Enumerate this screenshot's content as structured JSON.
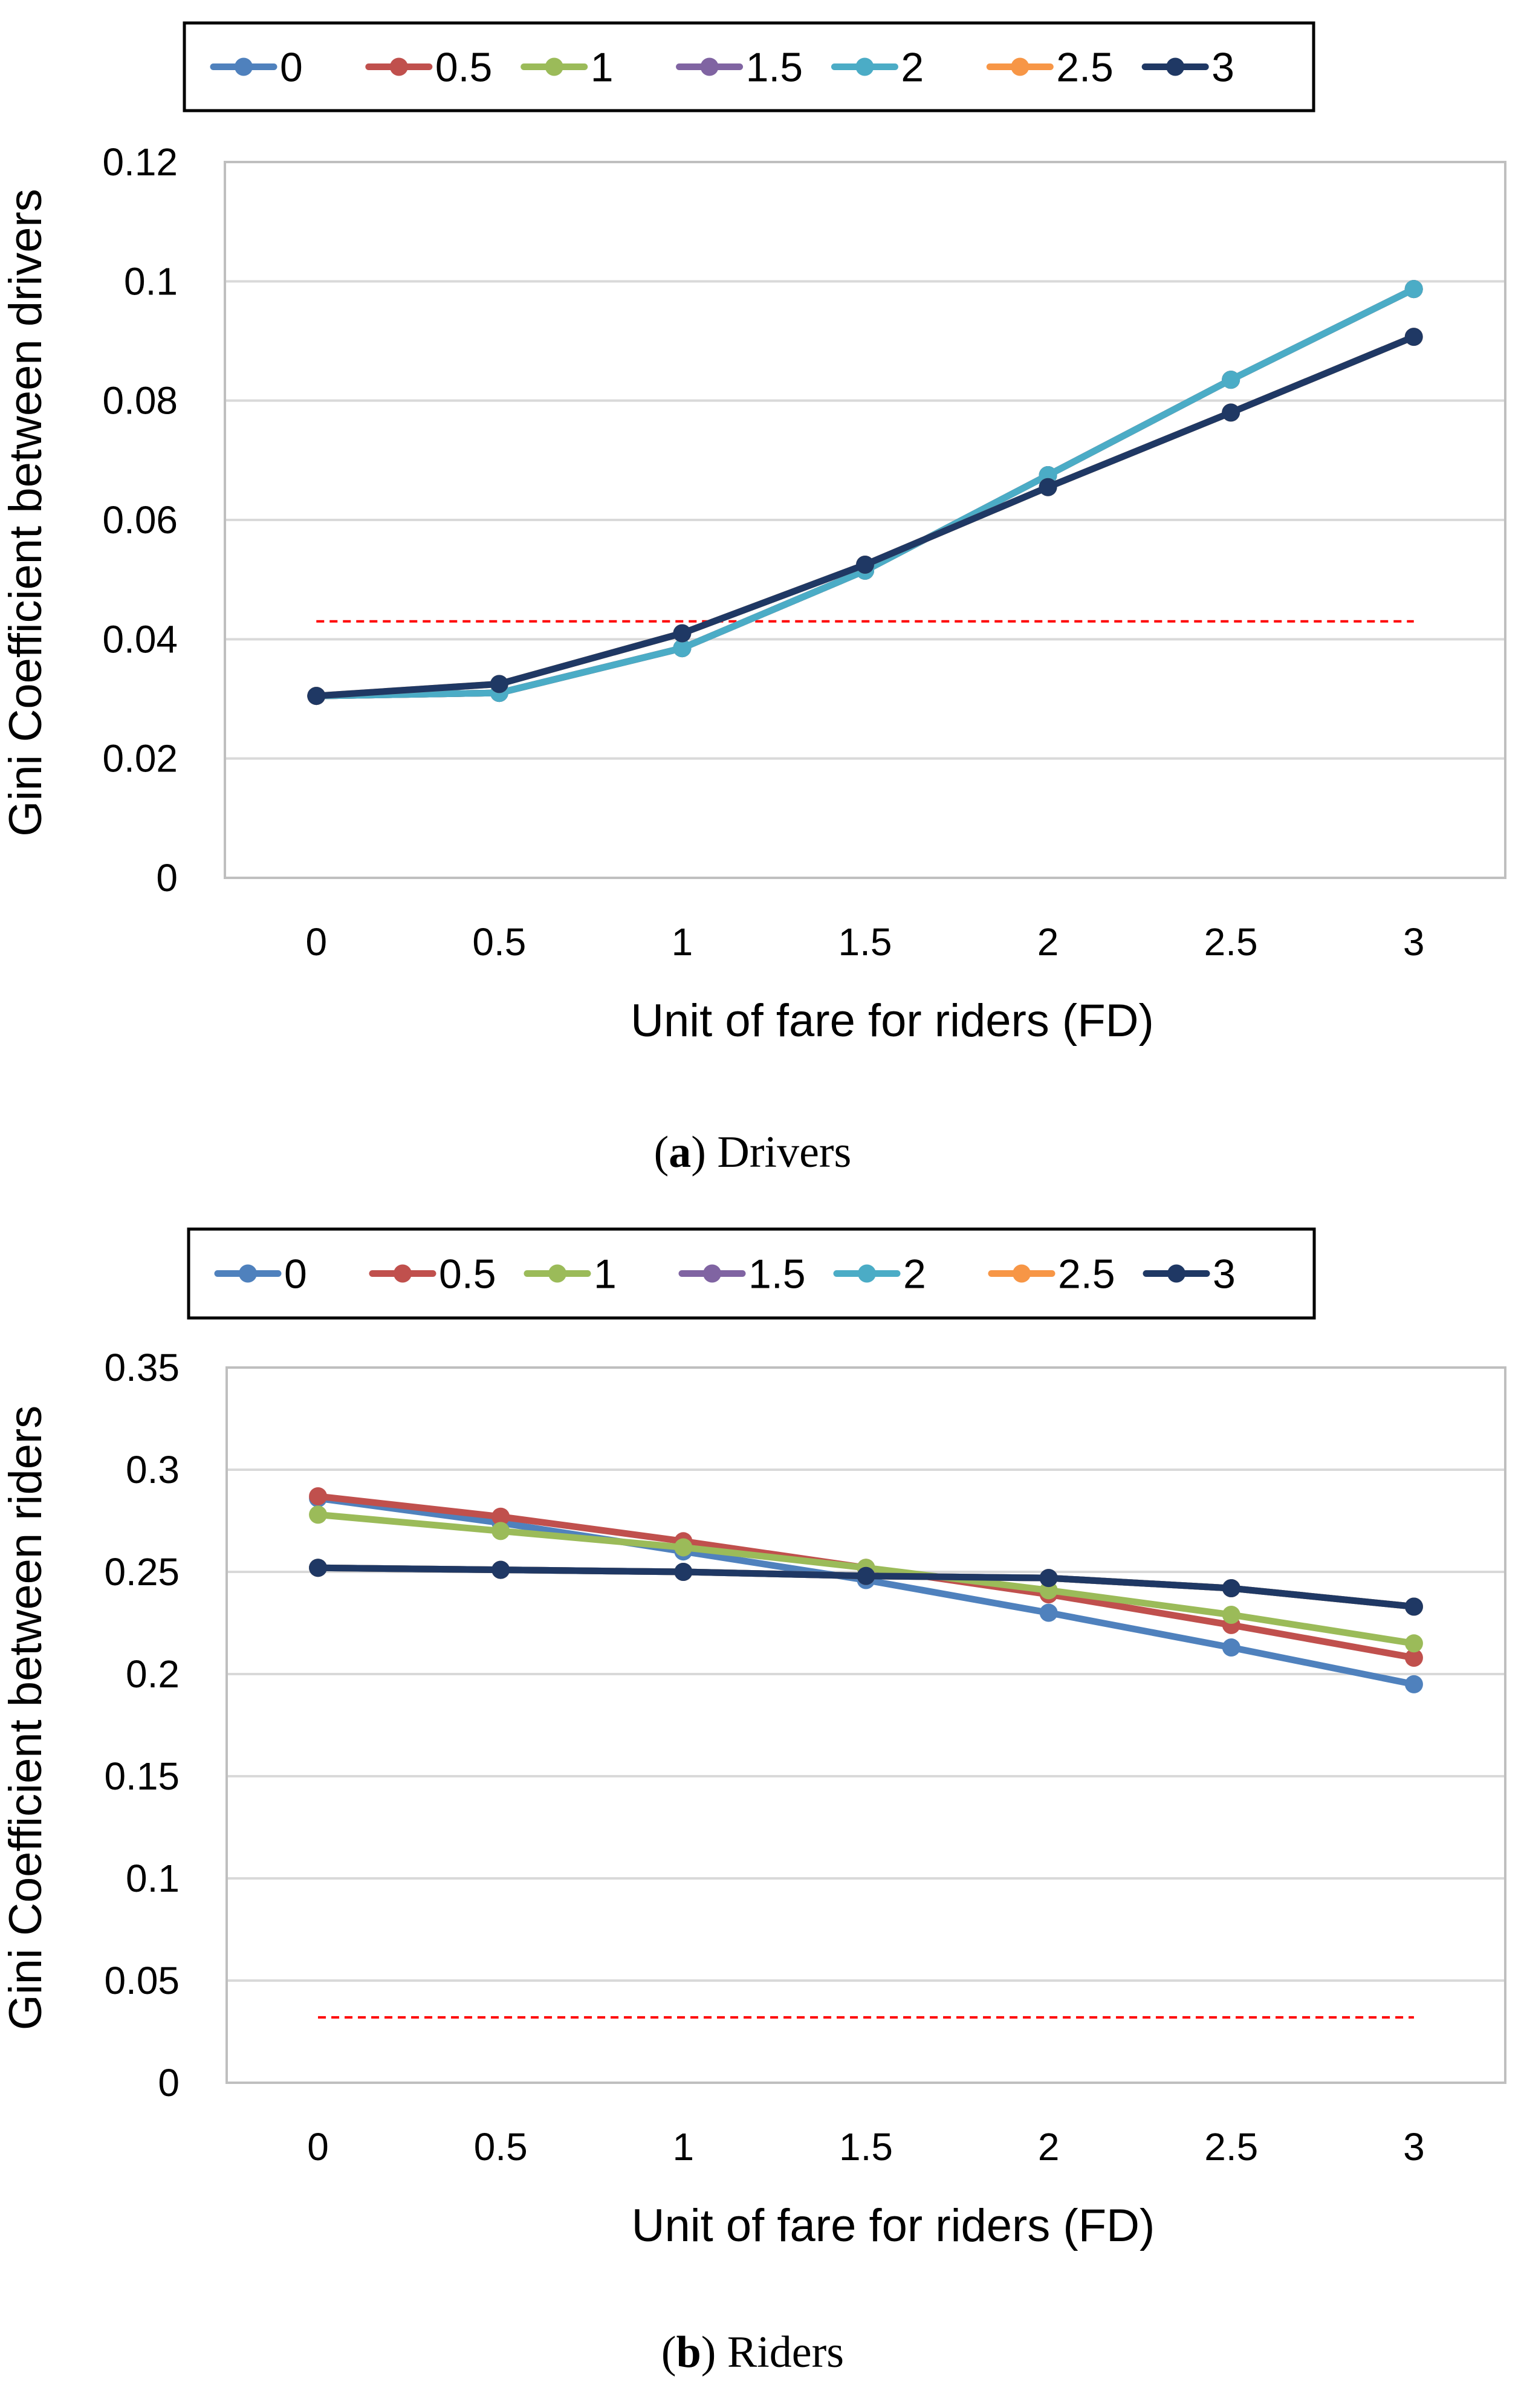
{
  "chart_data": [
    {
      "id": "drivers",
      "type": "line",
      "title": "",
      "caption_letter": "a",
      "caption_text": " Drivers",
      "xlabel": "Unit of fare for riders (FD)",
      "ylabel": "Gini Coefficient between drivers",
      "x": [
        0,
        0.5,
        1,
        1.5,
        2,
        2.5,
        3
      ],
      "x_tick_labels": [
        "0",
        "0.5",
        "1",
        "1.5",
        "2",
        "2.5",
        "3"
      ],
      "ylim": [
        0,
        0.12
      ],
      "y_ticks": [
        0,
        0.02,
        0.04,
        0.06,
        0.08,
        0.1,
        0.12
      ],
      "y_tick_labels": [
        "0",
        "0.02",
        "0.04",
        "0.06",
        "0.08",
        "0.1",
        "0.12"
      ],
      "grid": true,
      "legend_position": "top",
      "series": [
        {
          "name": "0",
          "color": "#4F81BD",
          "values": [
            0.0305,
            0.031,
            0.0385,
            0.0515,
            0.0675,
            0.0835,
            0.0987
          ]
        },
        {
          "name": "0.5",
          "color": "#C0504D",
          "values": [
            0.0305,
            0.031,
            0.0385,
            0.0515,
            0.0675,
            0.0835,
            0.0987
          ]
        },
        {
          "name": "1",
          "color": "#9BBB59",
          "values": [
            0.0305,
            0.031,
            0.0385,
            0.0515,
            0.0675,
            0.0835,
            0.0987
          ]
        },
        {
          "name": "1.5",
          "color": "#8064A2",
          "values": [
            0.0305,
            0.031,
            0.0385,
            0.0515,
            0.0675,
            0.0835,
            0.0987
          ]
        },
        {
          "name": "2",
          "color": "#4BACC6",
          "values": [
            0.0305,
            0.031,
            0.0385,
            0.0515,
            0.0675,
            0.0835,
            0.0987
          ]
        },
        {
          "name": "2.5",
          "color": "#F79646",
          "values": [
            0.0305,
            0.0325,
            0.041,
            0.0525,
            0.0655,
            0.078,
            0.0907
          ]
        },
        {
          "name": "3",
          "color": "#1F3864",
          "values": [
            0.0305,
            0.0325,
            0.041,
            0.0525,
            0.0655,
            0.078,
            0.0907
          ]
        }
      ],
      "reference_line": {
        "value": 0.043,
        "color": "#FF0000",
        "style": "dashed"
      }
    },
    {
      "id": "riders",
      "type": "line",
      "title": "",
      "caption_letter": "b",
      "caption_text": " Riders",
      "xlabel": "Unit of fare for riders (FD)",
      "ylabel": "Gini Coefficient between riders",
      "x": [
        0,
        0.5,
        1,
        1.5,
        2,
        2.5,
        3
      ],
      "x_tick_labels": [
        "0",
        "0.5",
        "1",
        "1.5",
        "2",
        "2.5",
        "3"
      ],
      "ylim": [
        0,
        0.35
      ],
      "y_ticks": [
        0,
        0.05,
        0.1,
        0.15,
        0.2,
        0.25,
        0.3,
        0.35
      ],
      "y_tick_labels": [
        "0",
        "0.05",
        "0.1",
        "0.15",
        "0.2",
        "0.25",
        "0.3",
        "0.35"
      ],
      "grid": true,
      "legend_position": "top",
      "series": [
        {
          "name": "0",
          "color": "#4F81BD",
          "values": [
            0.286,
            0.274,
            0.26,
            0.246,
            0.23,
            0.213,
            0.195
          ]
        },
        {
          "name": "0.5",
          "color": "#C0504D",
          "values": [
            0.287,
            0.277,
            0.265,
            0.252,
            0.239,
            0.224,
            0.208
          ]
        },
        {
          "name": "1",
          "color": "#9BBB59",
          "values": [
            0.278,
            0.27,
            0.262,
            0.252,
            0.241,
            0.229,
            0.215
          ]
        },
        {
          "name": "1.5",
          "color": "#8064A2",
          "values": [
            0.252,
            0.251,
            0.25,
            0.248,
            0.247,
            0.242,
            0.233
          ]
        },
        {
          "name": "2",
          "color": "#4BACC6",
          "values": [
            0.252,
            0.251,
            0.25,
            0.248,
            0.247,
            0.242,
            0.233
          ]
        },
        {
          "name": "2.5",
          "color": "#F79646",
          "values": [
            0.252,
            0.251,
            0.25,
            0.248,
            0.247,
            0.242,
            0.233
          ]
        },
        {
          "name": "3",
          "color": "#1F3864",
          "values": [
            0.252,
            0.251,
            0.25,
            0.248,
            0.247,
            0.242,
            0.233
          ]
        }
      ],
      "reference_line": {
        "value": 0.032,
        "color": "#FF0000",
        "style": "dashed"
      }
    }
  ]
}
